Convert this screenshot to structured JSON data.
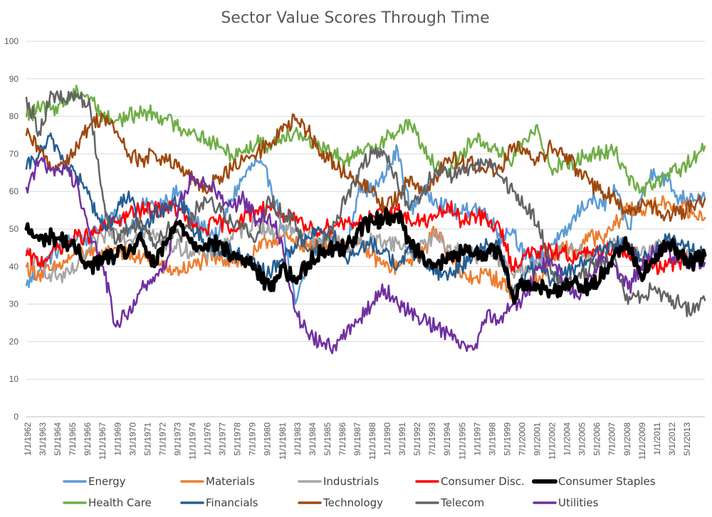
{
  "chart_data": {
    "type": "line",
    "title": "Sector Value Scores Through Time",
    "xlabel": "",
    "ylabel": "",
    "ylim": [
      0,
      100
    ],
    "yticks": [
      0,
      10,
      20,
      30,
      40,
      50,
      60,
      70,
      80,
      90,
      100
    ],
    "grid": "horizontal",
    "legend_position": "bottom",
    "x_range_years": [
      1962,
      2015
    ],
    "x_tick_labels": [
      "1/1/1962",
      "3/1/1963",
      "5/1/1964",
      "7/1/1965",
      "9/1/1966",
      "11/1/1967",
      "1/1/1969",
      "3/1/1970",
      "5/1/1971",
      "7/1/1972",
      "9/1/1973",
      "11/1/1974",
      "1/1/1976",
      "3/1/1977",
      "5/1/1978",
      "7/1/1979",
      "9/1/1980",
      "11/1/1981",
      "1/1/1983",
      "3/1/1984",
      "5/1/1985",
      "7/1/1986",
      "9/1/1987",
      "11/1/1988",
      "1/1/1990",
      "3/1/1991",
      "5/1/1992",
      "7/1/1993",
      "9/1/1994",
      "11/1/1995",
      "1/1/1997",
      "3/1/1998",
      "5/1/1999",
      "7/1/2000",
      "9/1/2001",
      "11/1/2002",
      "1/1/2004",
      "3/1/2005",
      "5/1/2006",
      "7/1/2007",
      "9/1/2008",
      "11/1/2009",
      "1/1/2011",
      "3/1/2012",
      "5/1/2013"
    ],
    "x": [
      1962,
      1963,
      1964,
      1965,
      1966,
      1967,
      1968,
      1969,
      1970,
      1971,
      1972,
      1973,
      1974,
      1975,
      1976,
      1977,
      1978,
      1979,
      1980,
      1981,
      1982,
      1983,
      1984,
      1985,
      1986,
      1987,
      1988,
      1989,
      1990,
      1991,
      1992,
      1993,
      1994,
      1995,
      1996,
      1997,
      1998,
      1999,
      2000,
      2001,
      2002,
      2003,
      2004,
      2005,
      2006,
      2007,
      2008,
      2009,
      2010,
      2011,
      2012,
      2013,
      2014,
      2015
    ],
    "series": [
      {
        "name": "Energy",
        "color": "#5b9bd5",
        "width": 2.5,
        "values": [
          35,
          39,
          43,
          46,
          48,
          47,
          52,
          55,
          50,
          56,
          56,
          58,
          60,
          52,
          50,
          48,
          58,
          64,
          68,
          63,
          51,
          30,
          40,
          47,
          48,
          44,
          62,
          60,
          64,
          71,
          55,
          60,
          58,
          55,
          54,
          56,
          54,
          48,
          50,
          42,
          42,
          46,
          48,
          54,
          58,
          56,
          60,
          50,
          58,
          66,
          63,
          58,
          59,
          58
        ]
      },
      {
        "name": "Materials",
        "color": "#ed7d31",
        "width": 2.5,
        "values": [
          40,
          38,
          39,
          41,
          44,
          43,
          43,
          45,
          43,
          42,
          42,
          39,
          39,
          40,
          42,
          42,
          42,
          41,
          44,
          47,
          48,
          46,
          46,
          45,
          48,
          45,
          46,
          43,
          40,
          40,
          42,
          44,
          50,
          44,
          37,
          37,
          38,
          36,
          33,
          36,
          36,
          42,
          45,
          44,
          48,
          47,
          51,
          56,
          55,
          56,
          57,
          56,
          54,
          53
        ]
      },
      {
        "name": "Industrials",
        "color": "#a5a5a5",
        "width": 2.5,
        "values": [
          44,
          40,
          38,
          37,
          40,
          45,
          48,
          50,
          47,
          50,
          48,
          46,
          45,
          44,
          43,
          45,
          48,
          50,
          52,
          49,
          50,
          50,
          48,
          47,
          47,
          45,
          46,
          47,
          47,
          46,
          44,
          46,
          48,
          45,
          44,
          43,
          43,
          42,
          38,
          40,
          40,
          43,
          44,
          44,
          44,
          44,
          47,
          45,
          43,
          44,
          48,
          44,
          42,
          42
        ]
      },
      {
        "name": "Consumer Disc.",
        "color": "#ff0000",
        "width": 2.5,
        "values": [
          43,
          41,
          44,
          46,
          48,
          48,
          50,
          52,
          54,
          55,
          55,
          56,
          55,
          50,
          50,
          52,
          50,
          53,
          55,
          56,
          54,
          52,
          50,
          50,
          51,
          52,
          52,
          53,
          54,
          55,
          52,
          52,
          53,
          56,
          52,
          54,
          52,
          50,
          40,
          43,
          44,
          44,
          44,
          42,
          44,
          43,
          46,
          44,
          42,
          40,
          40,
          41,
          42,
          43
        ]
      },
      {
        "name": "Consumer Staples",
        "color": "#000000",
        "width": 5,
        "values": [
          50,
          47,
          48,
          47,
          44,
          40,
          42,
          43,
          44,
          47,
          40,
          47,
          52,
          46,
          46,
          46,
          43,
          42,
          39,
          34,
          40,
          36,
          41,
          44,
          45,
          45,
          50,
          52,
          53,
          54,
          46,
          43,
          40,
          42,
          44,
          43,
          44,
          44,
          32,
          36,
          35,
          33,
          35,
          36,
          34,
          38,
          44,
          46,
          38,
          41,
          46,
          44,
          41,
          43
        ]
      },
      {
        "name": "Health Care",
        "color": "#70ad47",
        "width": 2.5,
        "values": [
          80,
          82,
          82,
          84,
          87,
          85,
          80,
          79,
          80,
          81,
          81,
          79,
          77,
          76,
          74,
          72,
          70,
          71,
          73,
          72,
          75,
          76,
          74,
          71,
          70,
          68,
          70,
          72,
          74,
          76,
          78,
          72,
          66,
          66,
          70,
          74,
          73,
          70,
          68,
          74,
          76,
          66,
          68,
          68,
          70,
          70,
          71,
          64,
          60,
          62,
          64,
          66,
          68,
          72
        ]
      },
      {
        "name": "Financials",
        "color": "#255e91",
        "width": 2.5,
        "values": [
          66,
          70,
          74,
          68,
          64,
          58,
          50,
          54,
          60,
          48,
          54,
          56,
          58,
          50,
          46,
          44,
          44,
          42,
          40,
          38,
          42,
          46,
          48,
          50,
          48,
          42,
          44,
          46,
          44,
          40,
          44,
          42,
          38,
          38,
          40,
          44,
          46,
          45,
          32,
          38,
          40,
          36,
          38,
          40,
          42,
          44,
          46,
          46,
          42,
          44,
          47,
          46,
          44,
          43
        ]
      },
      {
        "name": "Technology",
        "color": "#9e480e",
        "width": 2.5,
        "values": [
          75,
          71,
          66,
          68,
          72,
          78,
          80,
          76,
          70,
          68,
          70,
          68,
          66,
          63,
          60,
          64,
          66,
          68,
          70,
          73,
          76,
          79,
          76,
          70,
          68,
          64,
          62,
          60,
          56,
          58,
          64,
          60,
          64,
          69,
          68,
          67,
          66,
          66,
          72,
          70,
          68,
          72,
          70,
          66,
          62,
          60,
          58,
          54,
          56,
          56,
          54,
          54,
          56,
          58
        ]
      },
      {
        "name": "Telecom",
        "color": "#636363",
        "width": 2.5,
        "values": [
          85,
          76,
          86,
          84,
          86,
          82,
          58,
          46,
          50,
          52,
          46,
          50,
          48,
          54,
          58,
          56,
          52,
          50,
          48,
          58,
          54,
          52,
          44,
          46,
          52,
          58,
          66,
          70,
          70,
          62,
          56,
          60,
          66,
          64,
          66,
          66,
          68,
          64,
          60,
          56,
          52,
          38,
          36,
          36,
          40,
          42,
          42,
          30,
          32,
          34,
          32,
          30,
          28,
          31
        ]
      },
      {
        "name": "Utilities",
        "color": "#7030a0",
        "width": 2.5,
        "values": [
          61,
          68,
          66,
          66,
          62,
          48,
          40,
          24,
          28,
          34,
          36,
          42,
          58,
          64,
          62,
          60,
          56,
          58,
          52,
          54,
          46,
          28,
          22,
          20,
          19,
          22,
          26,
          30,
          34,
          30,
          28,
          26,
          24,
          22,
          20,
          18,
          28,
          26,
          30,
          32,
          40,
          42,
          36,
          32,
          38,
          42,
          40,
          34,
          40,
          44,
          44,
          42,
          40,
          41
        ]
      }
    ]
  }
}
